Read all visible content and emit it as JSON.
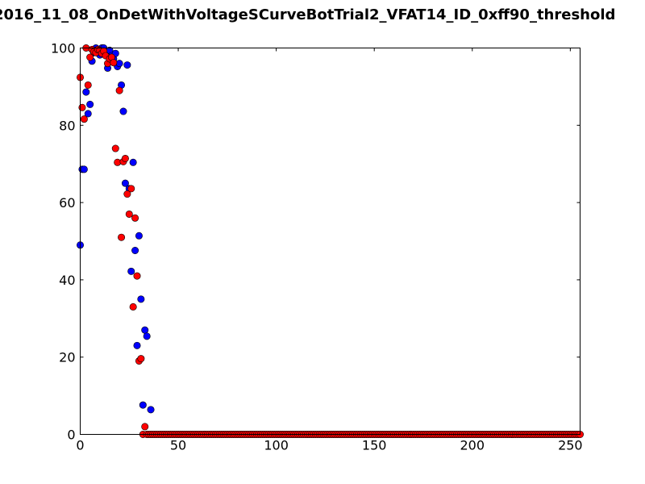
{
  "chart_data": {
    "type": "scatter",
    "title": "2016_11_08_OnDetWithVoltageSCurveBotTrial2_VFAT14_ID_0xff90_threshold",
    "xlabel": "",
    "ylabel": "",
    "xlim": [
      0,
      255
    ],
    "ylim": [
      0,
      100
    ],
    "xticks": [
      0,
      50,
      100,
      150,
      200,
      250
    ],
    "yticks": [
      0,
      20,
      40,
      60,
      80,
      100
    ],
    "grid": false,
    "series": [
      {
        "color": "#0000ff",
        "points": [
          [
            0,
            49
          ],
          [
            1,
            68.6
          ],
          [
            2,
            68.6
          ],
          [
            3,
            88.6
          ],
          [
            4,
            83
          ],
          [
            5,
            85.4
          ],
          [
            6,
            96.6
          ],
          [
            7,
            98.8
          ],
          [
            8,
            100
          ],
          [
            9,
            99.2
          ],
          [
            10,
            98.2
          ],
          [
            11,
            100
          ],
          [
            12,
            100
          ],
          [
            13,
            98.8
          ],
          [
            14,
            94.8
          ],
          [
            15,
            99.4
          ],
          [
            16,
            98
          ],
          [
            17,
            97.2
          ],
          [
            18,
            98.6
          ],
          [
            19,
            95.2
          ],
          [
            20,
            96
          ],
          [
            21,
            90.4
          ],
          [
            22,
            83.6
          ],
          [
            23,
            65
          ],
          [
            24,
            95.6
          ],
          [
            25,
            63.6
          ],
          [
            26,
            42.2
          ],
          [
            27,
            70.4
          ],
          [
            28,
            47.6
          ],
          [
            29,
            23
          ],
          [
            30,
            51.4
          ],
          [
            31,
            35
          ],
          [
            32,
            7.6
          ],
          [
            33,
            27
          ],
          [
            34,
            25.4
          ],
          [
            36,
            6.4
          ]
        ]
      },
      {
        "color": "#ff0000",
        "points": [
          [
            0,
            92.4
          ],
          [
            1,
            84.6
          ],
          [
            2,
            81.6
          ],
          [
            3,
            100
          ],
          [
            4,
            90.4
          ],
          [
            5,
            97.6
          ],
          [
            6,
            99.6
          ],
          [
            7,
            99
          ],
          [
            8,
            98.8
          ],
          [
            9,
            99.6
          ],
          [
            10,
            99.4
          ],
          [
            11,
            98.6
          ],
          [
            12,
            99.2
          ],
          [
            13,
            98
          ],
          [
            14,
            96
          ],
          [
            15,
            97.2
          ],
          [
            16,
            97.6
          ],
          [
            17,
            96.2
          ],
          [
            18,
            74
          ],
          [
            19,
            70.4
          ],
          [
            20,
            89
          ],
          [
            21,
            51
          ],
          [
            22,
            70.6
          ],
          [
            23,
            71.4
          ],
          [
            24,
            62.2
          ],
          [
            25,
            57
          ],
          [
            26,
            63.6
          ],
          [
            27,
            33
          ],
          [
            28,
            56
          ],
          [
            29,
            41
          ],
          [
            30,
            19
          ],
          [
            31,
            19.6
          ],
          [
            32,
            0
          ],
          [
            33,
            2
          ]
        ],
        "zero_from": 34,
        "zero_to": 255
      }
    ]
  }
}
